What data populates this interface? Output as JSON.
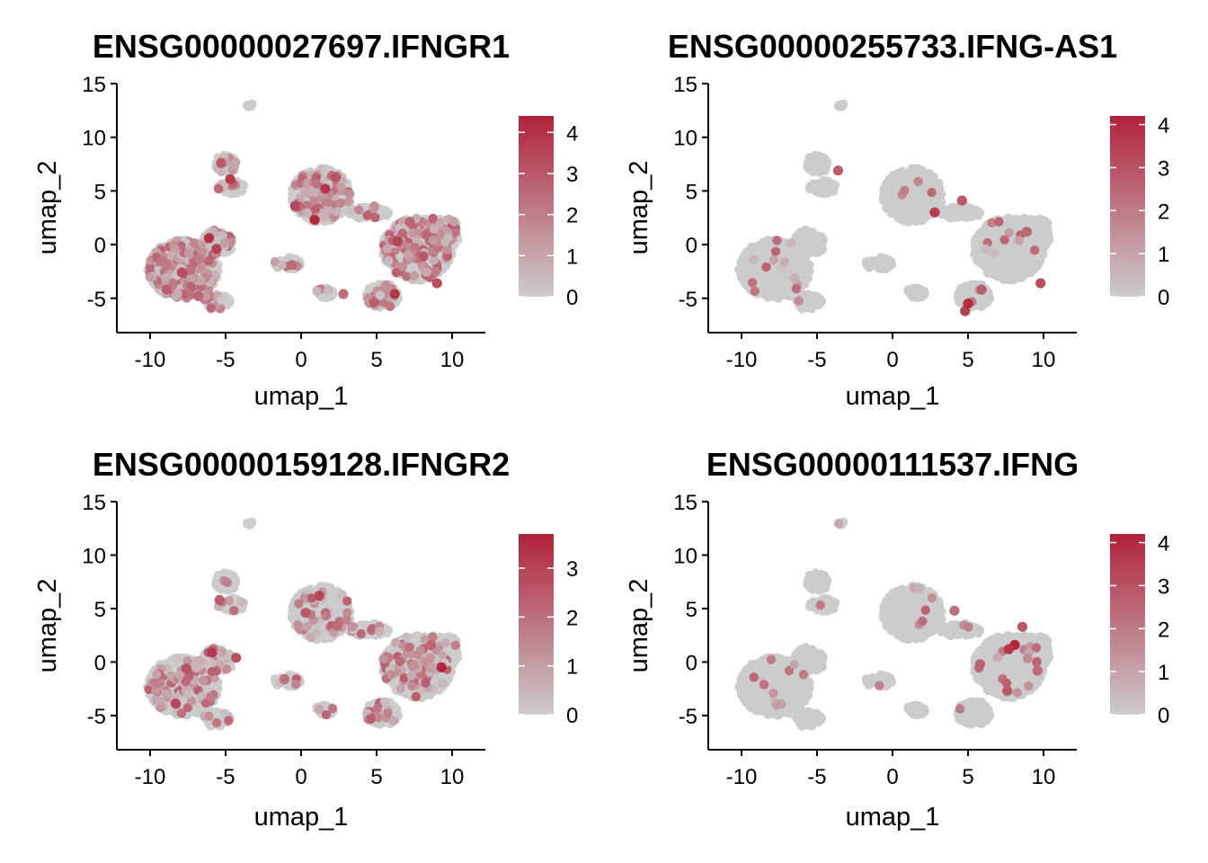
{
  "colors": {
    "low": "#cccccc",
    "high": "#b0223a",
    "background": "#ffffff"
  },
  "chart_data": [
    {
      "type": "scatter",
      "title": "ENSG00000027697.IFNGR1",
      "xlabel": "umap_1",
      "ylabel": "umap_2",
      "xlim": [
        -12.2,
        12.2
      ],
      "ylim": [
        -8.2,
        15
      ],
      "xticks": [
        -10,
        -5,
        0,
        5,
        10
      ],
      "xtick_labels": [
        "-10",
        "-5",
        "0",
        "5",
        "10"
      ],
      "yticks": [
        -5,
        0,
        5,
        10,
        15
      ],
      "ytick_labels": [
        "-5",
        "0",
        "5",
        "10",
        "15"
      ],
      "color_scale": {
        "min": 0,
        "max": 4.4,
        "ticks": [
          0,
          1,
          2,
          3,
          4
        ],
        "tick_labels": [
          "0",
          "1",
          "2",
          "3",
          "4"
        ]
      },
      "grid": false,
      "legend": "right",
      "expression_pattern": "broad",
      "highlight_points": [
        {
          "x": -6.1,
          "y": 0.6,
          "v": 4.0
        },
        {
          "x": -5.6,
          "y": -0.4,
          "v": 3.6
        },
        {
          "x": -7.9,
          "y": -2.6,
          "v": 3.2
        },
        {
          "x": -8.9,
          "y": -4.2,
          "v": 2.9
        },
        {
          "x": -4.7,
          "y": 6.1,
          "v": 3.7
        },
        {
          "x": -5.3,
          "y": 7.6,
          "v": 3.0
        },
        {
          "x": 0.9,
          "y": 2.3,
          "v": 4.2
        },
        {
          "x": 1.6,
          "y": 5.2,
          "v": 3.8
        },
        {
          "x": 2.3,
          "y": 6.3,
          "v": 3.1
        },
        {
          "x": -0.4,
          "y": 3.6,
          "v": 3.4
        },
        {
          "x": 6.4,
          "y": 0.3,
          "v": 3.5
        },
        {
          "x": 8.1,
          "y": -1.1,
          "v": 3.0
        },
        {
          "x": 9.0,
          "y": -3.6,
          "v": 3.3
        },
        {
          "x": 6.2,
          "y": -4.6,
          "v": 3.9
        },
        {
          "x": 4.8,
          "y": -5.4,
          "v": 2.8
        },
        {
          "x": 2.8,
          "y": -4.6,
          "v": 2.4
        },
        {
          "x": -0.6,
          "y": -1.9,
          "v": 2.5
        },
        {
          "x": 7.2,
          "y": 2.1,
          "v": 2.7
        },
        {
          "x": -9.2,
          "y": -1.6,
          "v": 2.2
        },
        {
          "x": -6.8,
          "y": -4.8,
          "v": 2.6
        }
      ]
    },
    {
      "type": "scatter",
      "title": "ENSG00000255733.IFNG-AS1",
      "xlabel": "umap_1",
      "ylabel": "umap_2",
      "xlim": [
        -12.2,
        12.2
      ],
      "ylim": [
        -8.2,
        15
      ],
      "xticks": [
        -10,
        -5,
        0,
        5,
        10
      ],
      "xtick_labels": [
        "-10",
        "-5",
        "0",
        "5",
        "10"
      ],
      "yticks": [
        -5,
        0,
        5,
        10,
        15
      ],
      "ytick_labels": [
        "-5",
        "0",
        "5",
        "10",
        "15"
      ],
      "color_scale": {
        "min": 0,
        "max": 4.2,
        "ticks": [
          0,
          1,
          2,
          3,
          4
        ],
        "tick_labels": [
          "0",
          "1",
          "2",
          "3",
          "4"
        ]
      },
      "grid": false,
      "legend": "right",
      "expression_pattern": "sparse",
      "highlight_points": [
        {
          "x": 2.8,
          "y": 3.0,
          "v": 3.6
        },
        {
          "x": 4.6,
          "y": 4.1,
          "v": 2.9
        },
        {
          "x": 4.8,
          "y": -6.2,
          "v": 3.4
        },
        {
          "x": 5.9,
          "y": -4.2,
          "v": 2.7
        },
        {
          "x": 8.9,
          "y": 1.2,
          "v": 2.5
        },
        {
          "x": 9.8,
          "y": -3.6,
          "v": 3.1
        },
        {
          "x": -3.6,
          "y": 6.9,
          "v": 2.8
        },
        {
          "x": 5.0,
          "y": -5.5,
          "v": 3.9
        }
      ]
    },
    {
      "type": "scatter",
      "title": "ENSG00000159128.IFNGR2",
      "xlabel": "umap_1",
      "ylabel": "umap_2",
      "xlim": [
        -12.2,
        12.2
      ],
      "ylim": [
        -8.2,
        15
      ],
      "xticks": [
        -10,
        -5,
        0,
        5,
        10
      ],
      "xtick_labels": [
        "-10",
        "-5",
        "0",
        "5",
        "10"
      ],
      "yticks": [
        -5,
        0,
        5,
        10,
        15
      ],
      "ytick_labels": [
        "-5",
        "0",
        "5",
        "10",
        "15"
      ],
      "color_scale": {
        "min": 0,
        "max": 3.7,
        "ticks": [
          0,
          1,
          2,
          3
        ],
        "tick_labels": [
          "0",
          "1",
          "2",
          "3"
        ]
      },
      "grid": false,
      "legend": "right",
      "expression_pattern": "moderate",
      "highlight_points": [
        {
          "x": -5.9,
          "y": 0.9,
          "v": 3.2
        },
        {
          "x": -7.6,
          "y": -0.6,
          "v": 2.6
        },
        {
          "x": -8.3,
          "y": -3.9,
          "v": 2.9
        },
        {
          "x": -4.3,
          "y": 0.4,
          "v": 2.7
        },
        {
          "x": -5.4,
          "y": 5.8,
          "v": 2.4
        },
        {
          "x": 1.2,
          "y": 6.2,
          "v": 2.9
        },
        {
          "x": 0.3,
          "y": 4.6,
          "v": 2.5
        },
        {
          "x": 2.4,
          "y": 3.4,
          "v": 2.1
        },
        {
          "x": 9.3,
          "y": -0.5,
          "v": 3.6
        },
        {
          "x": 8.6,
          "y": 1.6,
          "v": 2.2
        },
        {
          "x": 4.6,
          "y": -5.3,
          "v": 2.3
        },
        {
          "x": -1.1,
          "y": -1.6,
          "v": 2.0
        }
      ]
    },
    {
      "type": "scatter",
      "title": "ENSG00000111537.IFNG",
      "xlabel": "umap_1",
      "ylabel": "umap_2",
      "xlim": [
        -12.2,
        12.2
      ],
      "ylim": [
        -8.2,
        15
      ],
      "xticks": [
        -10,
        -5,
        0,
        5,
        10
      ],
      "xtick_labels": [
        "-10",
        "-5",
        "0",
        "5",
        "10"
      ],
      "yticks": [
        -5,
        0,
        5,
        10,
        15
      ],
      "ytick_labels": [
        "-5",
        "0",
        "5",
        "10",
        "15"
      ],
      "color_scale": {
        "min": 0,
        "max": 4.2,
        "ticks": [
          0,
          1,
          2,
          3,
          4
        ],
        "tick_labels": [
          "0",
          "1",
          "2",
          "3",
          "4"
        ]
      },
      "grid": false,
      "legend": "right",
      "expression_pattern": "sparse",
      "highlight_points": [
        {
          "x": 8.1,
          "y": 1.6,
          "v": 4.1
        },
        {
          "x": 7.7,
          "y": 1.2,
          "v": 3.7
        },
        {
          "x": 8.6,
          "y": 3.3,
          "v": 2.9
        },
        {
          "x": 7.6,
          "y": -2.7,
          "v": 2.8
        },
        {
          "x": 4.1,
          "y": 4.8,
          "v": 2.3
        },
        {
          "x": 5.8,
          "y": -0.2,
          "v": 2.6
        },
        {
          "x": 9.6,
          "y": -0.8,
          "v": 2.4
        }
      ]
    }
  ]
}
